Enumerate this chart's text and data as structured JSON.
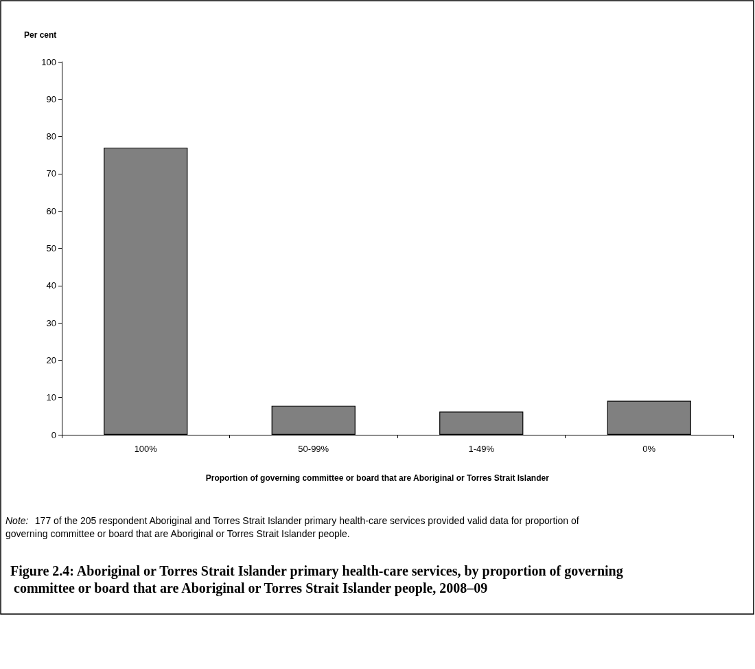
{
  "chart_data": {
    "type": "bar",
    "title": "Figure 2.4: Aboriginal or Torres Strait Islander primary health-care services, by proportion of governing committee or board that are Aboriginal or Torres Strait Islander people, 2008–09",
    "ylabel": "Per cent",
    "xlabel": "Proportion of governing committee or board that are Aboriginal or Torres Strait Islander",
    "categories": [
      "100%",
      "50-99%",
      "1-49%",
      "0%"
    ],
    "values": [
      77.0,
      7.8,
      6.2,
      9.1
    ],
    "color": "#808080",
    "ylim": [
      0,
      100
    ],
    "yticks": [
      0,
      10,
      20,
      30,
      40,
      50,
      60,
      70,
      80,
      90,
      100
    ],
    "grid": false,
    "annotations": [
      "Note: 177 of the 205 respondent Aboriginal and Torres Strait Islander primary health-care services provided valid data for proportion of governing committee or board that are Aboriginal or Torres Strait Islander people."
    ]
  }
}
